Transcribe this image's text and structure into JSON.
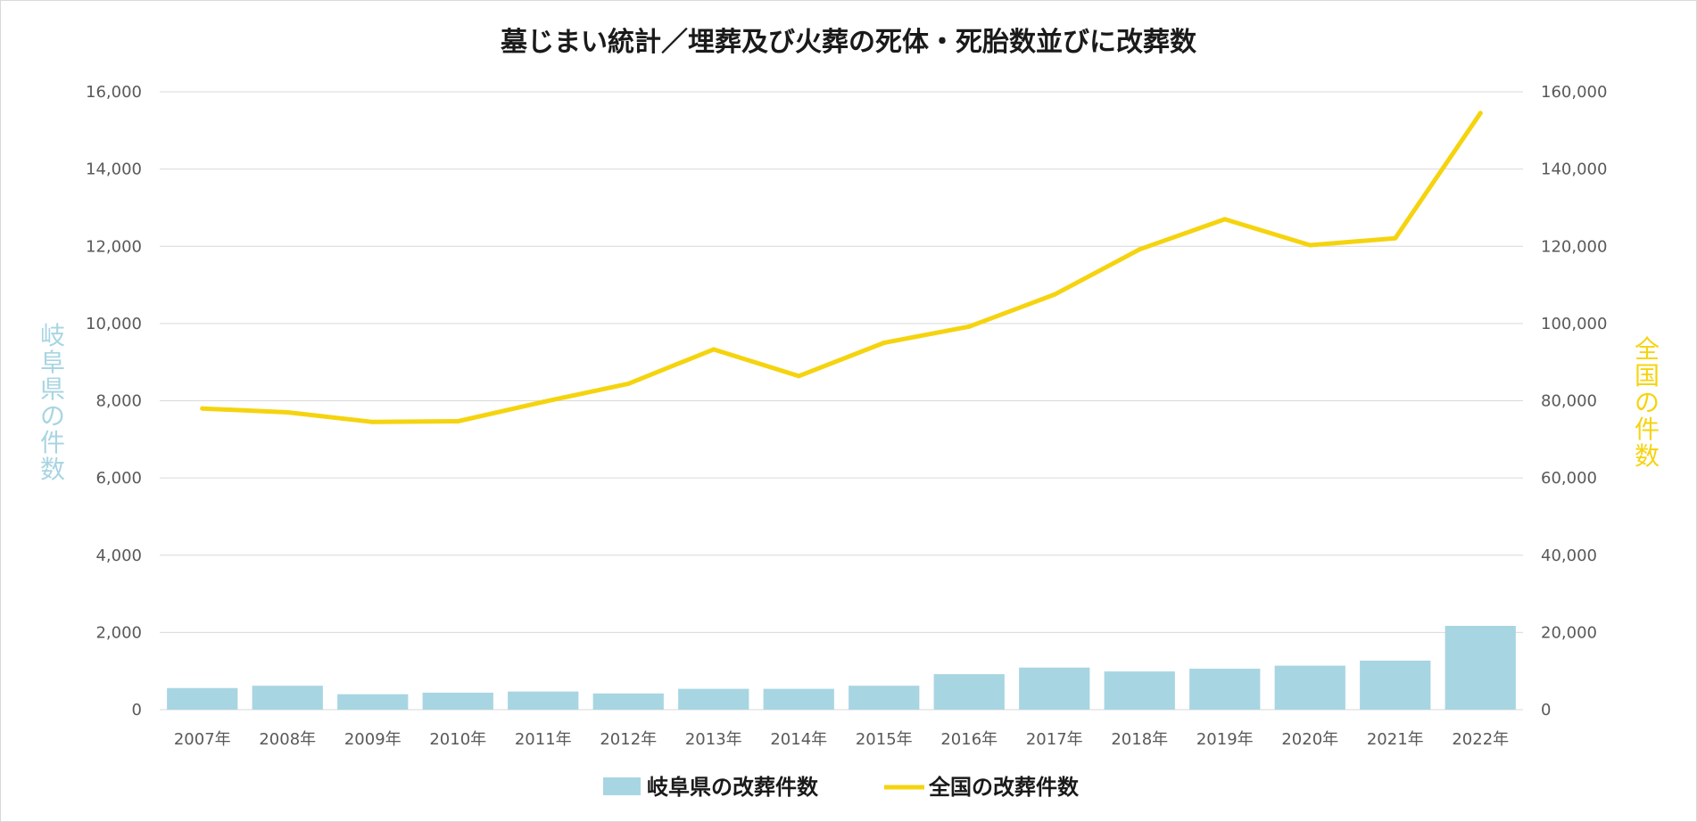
{
  "chart_data": {
    "type": "bar+line",
    "title": "墓じまい統計／埋葬及び火葬の死体・死胎数並びに改葬数",
    "categories": [
      "2007年",
      "2008年",
      "2009年",
      "2010年",
      "2011年",
      "2012年",
      "2013年",
      "2014年",
      "2015年",
      "2016年",
      "2017年",
      "2018年",
      "2019年",
      "2020年",
      "2021年",
      "2022年"
    ],
    "series": [
      {
        "name": "岐阜県の改葬件数",
        "type": "bar",
        "axis": "left",
        "color": "#a8d5e2",
        "values": [
          560,
          620,
          400,
          440,
          470,
          420,
          540,
          540,
          620,
          920,
          1090,
          990,
          1060,
          1140,
          1270,
          2170
        ]
      },
      {
        "name": "全国の改葬件数",
        "type": "line",
        "axis": "right",
        "color": "#f5d40f",
        "values": [
          78000,
          77000,
          74500,
          74700,
          79700,
          84400,
          93300,
          86400,
          95000,
          99200,
          107500,
          119200,
          127000,
          120300,
          122100,
          154500
        ]
      }
    ],
    "y_left": {
      "label": "岐阜県の件数",
      "min": 0,
      "max": 16000,
      "ticks": [
        "0",
        "2,000",
        "4,000",
        "6,000",
        "8,000",
        "10,000",
        "12,000",
        "14,000",
        "16,000"
      ]
    },
    "y_right": {
      "label": "全国の件数",
      "min": 0,
      "max": 160000,
      "ticks": [
        "0",
        "20,000",
        "40,000",
        "60,000",
        "80,000",
        "100,000",
        "120,000",
        "140,000",
        "160,000"
      ]
    },
    "grid": true,
    "legend_position": "bottom"
  }
}
